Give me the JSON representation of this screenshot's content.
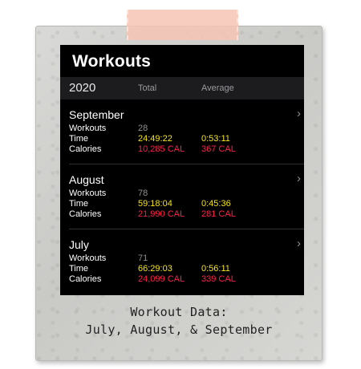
{
  "header": {
    "title": "Workouts"
  },
  "table_header": {
    "year": "2020",
    "total_label": "Total",
    "average_label": "Average"
  },
  "months": [
    {
      "name": "September",
      "workouts": "28",
      "time_total": "24:49:22",
      "time_avg": "0:53:11",
      "cal_total": "10,285 CAL",
      "cal_avg": "367 CAL"
    },
    {
      "name": "August",
      "workouts": "78",
      "time_total": "59:18:04",
      "time_avg": "0:45:36",
      "cal_total": "21,990 CAL",
      "cal_avg": "281 CAL"
    },
    {
      "name": "July",
      "workouts": "71",
      "time_total": "66:29:03",
      "time_avg": "0:56:11",
      "cal_total": "24,099 CAL",
      "cal_avg": "339 CAL"
    }
  ],
  "row_labels": {
    "workouts": "Workouts",
    "time": "Time",
    "calories": "Calories"
  },
  "caption": {
    "line1": "Workout Data:",
    "line2": "July, August, & September"
  },
  "icons": {
    "chevron": "chevron-right-icon"
  },
  "colors": {
    "time": "#f5e318",
    "calories": "#ff1f4b",
    "count": "#8e8e93"
  }
}
